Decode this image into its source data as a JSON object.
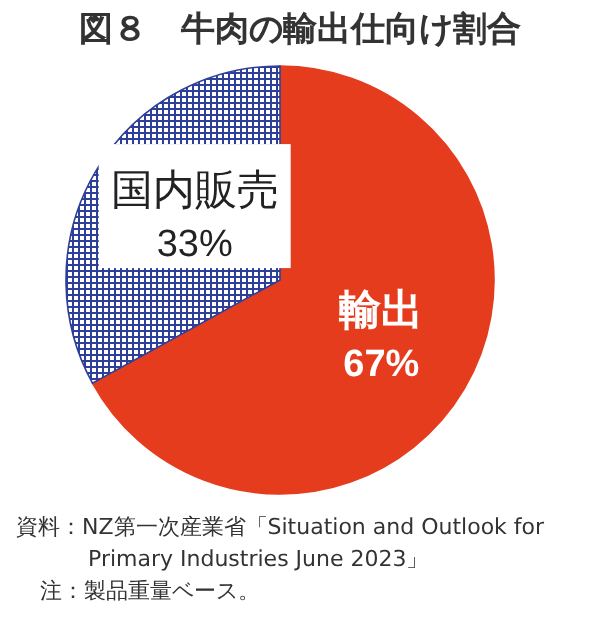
{
  "chart_data": {
    "type": "pie",
    "title": "図８　牛肉の輸出仕向け割合",
    "categories": [
      "輸出",
      "国内販売"
    ],
    "values": [
      67,
      33
    ],
    "colors": [
      "#e63c1e",
      "#2e3f9a"
    ],
    "value_labels": [
      "67%",
      "33%"
    ],
    "annotations": [
      "資料：NZ第一次産業省「Situation and Outlook for Primary Industries June 2023」",
      "注：製品重量ベース。"
    ]
  }
}
